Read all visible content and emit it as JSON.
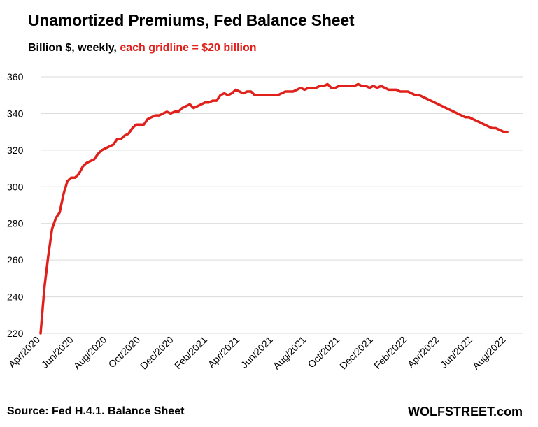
{
  "header": {
    "title": "Unamortized  Premiums,  Fed Balance Sheet",
    "subtitle_black": "Billion $, weekly, ",
    "subtitle_red": "each gridline = $20 billion"
  },
  "footer": {
    "source": "Source: Fed H.4.1. Balance Sheet",
    "brand": "WOLFSTREET.com"
  },
  "colors": {
    "line": "#e0201b",
    "grid": "#d9d9d9",
    "subtitle_accent": "#e0201b"
  },
  "chart_data": {
    "type": "line",
    "title": "Unamortized  Premiums,  Fed Balance Sheet",
    "ylabel": "Billion $",
    "ylim": [
      220,
      360
    ],
    "yticks": [
      220,
      240,
      260,
      280,
      300,
      320,
      340,
      360
    ],
    "xlim": [
      "2020-04-01",
      "2022-08-31"
    ],
    "xtick_labels": [
      "Apr/2020",
      "Jun/2020",
      "Aug/2020",
      "Oct/2020",
      "Dec/2020",
      "Feb/2021",
      "Apr/2021",
      "Jun/2021",
      "Aug/2021",
      "Oct/2021",
      "Dec/2021",
      "Feb/2022",
      "Apr/2022",
      "Jun/2022",
      "Aug/2022"
    ],
    "xtick_dates": [
      "2020-04-01",
      "2020-06-01",
      "2020-08-01",
      "2020-10-01",
      "2020-12-01",
      "2021-02-01",
      "2021-04-01",
      "2021-06-01",
      "2021-08-01",
      "2021-10-01",
      "2021-12-01",
      "2022-02-01",
      "2022-04-01",
      "2022-06-01",
      "2022-08-01"
    ],
    "grid": true,
    "series": [
      {
        "points": [
          [
            "2020-04-01",
            220
          ],
          [
            "2020-04-08",
            245
          ],
          [
            "2020-04-15",
            262
          ],
          [
            "2020-04-22",
            277
          ],
          [
            "2020-04-29",
            283
          ],
          [
            "2020-05-06",
            286
          ],
          [
            "2020-05-13",
            296
          ],
          [
            "2020-05-20",
            303
          ],
          [
            "2020-05-27",
            305
          ],
          [
            "2020-06-03",
            305
          ],
          [
            "2020-06-10",
            307
          ],
          [
            "2020-06-17",
            311
          ],
          [
            "2020-06-24",
            313
          ],
          [
            "2020-07-01",
            314
          ],
          [
            "2020-07-08",
            315
          ],
          [
            "2020-07-15",
            318
          ],
          [
            "2020-07-22",
            320
          ],
          [
            "2020-07-29",
            321
          ],
          [
            "2020-08-05",
            322
          ],
          [
            "2020-08-12",
            323
          ],
          [
            "2020-08-19",
            326
          ],
          [
            "2020-08-26",
            326
          ],
          [
            "2020-09-02",
            328
          ],
          [
            "2020-09-09",
            329
          ],
          [
            "2020-09-16",
            332
          ],
          [
            "2020-09-23",
            334
          ],
          [
            "2020-09-30",
            334
          ],
          [
            "2020-10-07",
            334
          ],
          [
            "2020-10-14",
            337
          ],
          [
            "2020-10-21",
            338
          ],
          [
            "2020-10-28",
            339
          ],
          [
            "2020-11-04",
            339
          ],
          [
            "2020-11-11",
            340
          ],
          [
            "2020-11-18",
            341
          ],
          [
            "2020-11-25",
            340
          ],
          [
            "2020-12-02",
            341
          ],
          [
            "2020-12-09",
            341
          ],
          [
            "2020-12-16",
            343
          ],
          [
            "2020-12-23",
            344
          ],
          [
            "2020-12-30",
            345
          ],
          [
            "2021-01-06",
            343
          ],
          [
            "2021-01-13",
            344
          ],
          [
            "2021-01-20",
            345
          ],
          [
            "2021-01-27",
            346
          ],
          [
            "2021-02-03",
            346
          ],
          [
            "2021-02-10",
            347
          ],
          [
            "2021-02-17",
            347
          ],
          [
            "2021-02-24",
            350
          ],
          [
            "2021-03-03",
            351
          ],
          [
            "2021-03-10",
            350
          ],
          [
            "2021-03-17",
            351
          ],
          [
            "2021-03-24",
            353
          ],
          [
            "2021-03-31",
            352
          ],
          [
            "2021-04-07",
            351
          ],
          [
            "2021-04-14",
            352
          ],
          [
            "2021-04-21",
            352
          ],
          [
            "2021-04-28",
            350
          ],
          [
            "2021-05-05",
            350
          ],
          [
            "2021-05-12",
            350
          ],
          [
            "2021-05-19",
            350
          ],
          [
            "2021-05-26",
            350
          ],
          [
            "2021-06-02",
            350
          ],
          [
            "2021-06-09",
            350
          ],
          [
            "2021-06-16",
            351
          ],
          [
            "2021-06-23",
            352
          ],
          [
            "2021-06-30",
            352
          ],
          [
            "2021-07-07",
            352
          ],
          [
            "2021-07-14",
            353
          ],
          [
            "2021-07-21",
            354
          ],
          [
            "2021-07-28",
            353
          ],
          [
            "2021-08-04",
            354
          ],
          [
            "2021-08-11",
            354
          ],
          [
            "2021-08-18",
            354
          ],
          [
            "2021-08-25",
            355
          ],
          [
            "2021-09-01",
            355
          ],
          [
            "2021-09-08",
            356
          ],
          [
            "2021-09-15",
            354
          ],
          [
            "2021-09-22",
            354
          ],
          [
            "2021-09-29",
            355
          ],
          [
            "2021-10-06",
            355
          ],
          [
            "2021-10-13",
            355
          ],
          [
            "2021-10-20",
            355
          ],
          [
            "2021-10-27",
            355
          ],
          [
            "2021-11-03",
            356
          ],
          [
            "2021-11-10",
            355
          ],
          [
            "2021-11-17",
            355
          ],
          [
            "2021-11-24",
            354
          ],
          [
            "2021-12-01",
            355
          ],
          [
            "2021-12-08",
            354
          ],
          [
            "2021-12-15",
            355
          ],
          [
            "2021-12-22",
            354
          ],
          [
            "2021-12-29",
            353
          ],
          [
            "2022-01-05",
            353
          ],
          [
            "2022-01-12",
            353
          ],
          [
            "2022-01-19",
            352
          ],
          [
            "2022-01-26",
            352
          ],
          [
            "2022-02-02",
            352
          ],
          [
            "2022-02-09",
            351
          ],
          [
            "2022-02-16",
            350
          ],
          [
            "2022-02-23",
            350
          ],
          [
            "2022-03-02",
            349
          ],
          [
            "2022-03-09",
            348
          ],
          [
            "2022-03-16",
            347
          ],
          [
            "2022-03-23",
            346
          ],
          [
            "2022-03-30",
            345
          ],
          [
            "2022-04-06",
            344
          ],
          [
            "2022-04-13",
            343
          ],
          [
            "2022-04-20",
            342
          ],
          [
            "2022-04-27",
            341
          ],
          [
            "2022-05-04",
            340
          ],
          [
            "2022-05-11",
            339
          ],
          [
            "2022-05-18",
            338
          ],
          [
            "2022-05-25",
            338
          ],
          [
            "2022-06-01",
            337
          ],
          [
            "2022-06-08",
            336
          ],
          [
            "2022-06-15",
            335
          ],
          [
            "2022-06-22",
            334
          ],
          [
            "2022-06-29",
            333
          ],
          [
            "2022-07-06",
            332
          ],
          [
            "2022-07-13",
            332
          ],
          [
            "2022-07-20",
            331
          ],
          [
            "2022-07-27",
            330
          ],
          [
            "2022-08-03",
            330
          ]
        ]
      }
    ]
  }
}
